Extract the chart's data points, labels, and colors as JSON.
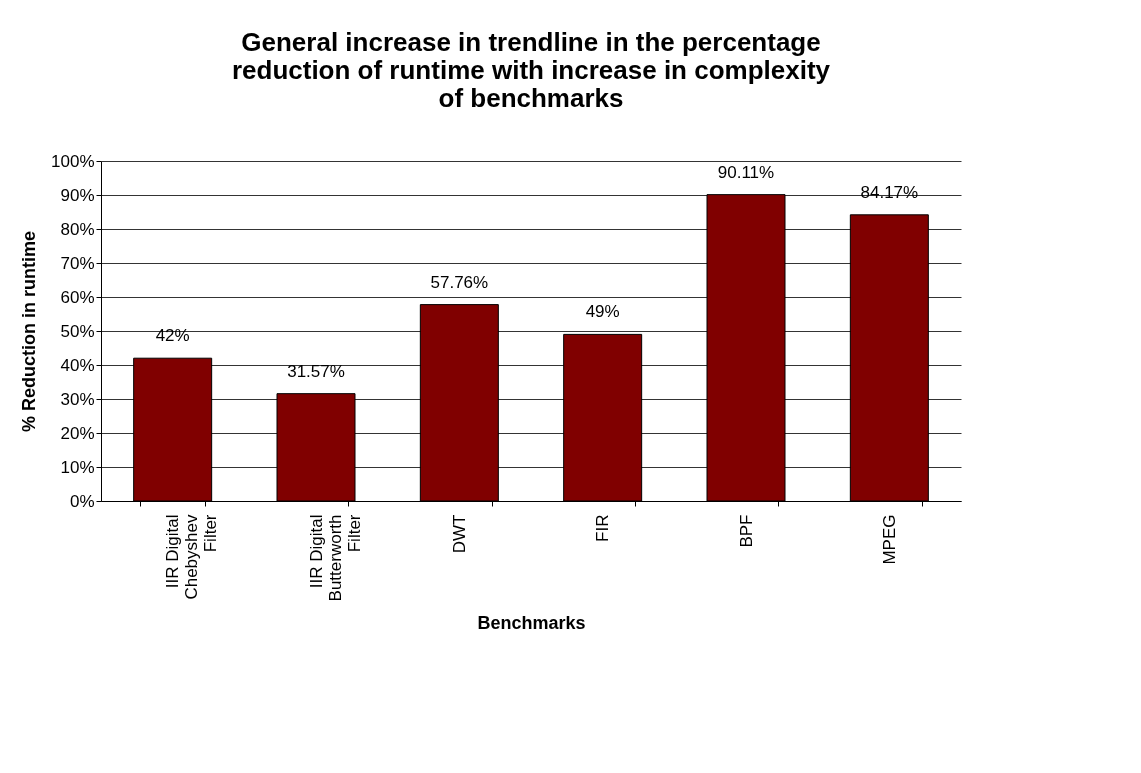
{
  "chart_data": {
    "type": "bar",
    "title": "General increase in trendline in the percentage reduction of runtime with increase in complexity of benchmarks",
    "xlabel": "Benchmarks",
    "ylabel": "% Reduction in runtime",
    "categories": [
      "IIR Digital Chebyshev Filter",
      "IIR Digital Butterworth Filter",
      "DWT",
      "FIR",
      "BPF",
      "MPEG"
    ],
    "values": [
      42,
      31.57,
      57.76,
      49,
      90.11,
      84.17
    ],
    "value_labels": [
      "42%",
      "31.57%",
      "57.76%",
      "49%",
      "90.11%",
      "84.17%"
    ],
    "color": "#800000",
    "ylim": [
      0,
      100
    ],
    "yticks": [
      {
        "value": 0,
        "label": "0%"
      },
      {
        "value": 10,
        "label": "10%"
      },
      {
        "value": 20,
        "label": "20%"
      },
      {
        "value": 30,
        "label": "30%"
      },
      {
        "value": 40,
        "label": "40%"
      },
      {
        "value": 50,
        "label": "50%"
      },
      {
        "value": 60,
        "label": "60%"
      },
      {
        "value": 70,
        "label": "70%"
      },
      {
        "value": 80,
        "label": "80%"
      },
      {
        "value": 90,
        "label": "90%"
      },
      {
        "value": 100,
        "label": "100%"
      }
    ],
    "grid": "y"
  }
}
